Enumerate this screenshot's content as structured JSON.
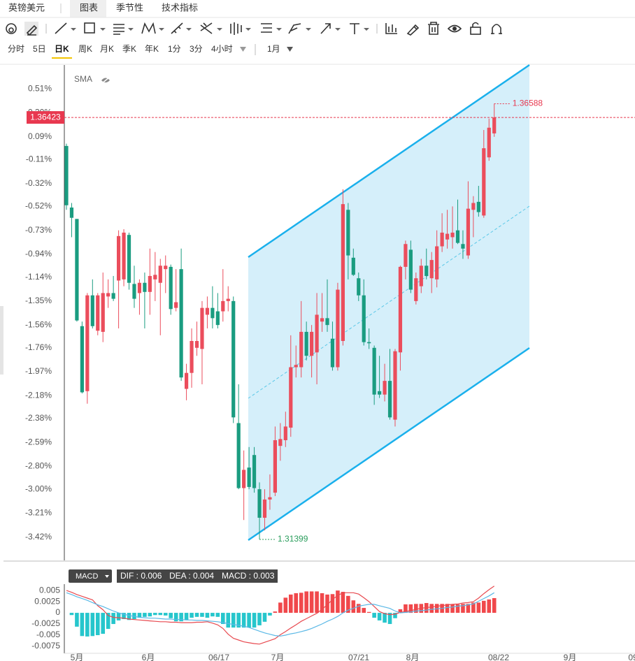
{
  "header": {
    "tabs": [
      "英镑美元",
      "图表",
      "季节性",
      "技术指标"
    ]
  },
  "periods": [
    "分时",
    "5日",
    "日K",
    "周K",
    "月K",
    "季K",
    "年K",
    "1分",
    "3分",
    "4小时"
  ],
  "range": "1月",
  "chart_data": [
    {
      "type": "candlestick",
      "indicator": "SMA",
      "colors": {
        "up": "#eb4d5c",
        "down": "#1a9c80"
      },
      "open": [
        0.01,
        -0.53,
        -0.63,
        -1.57,
        -2.14,
        -1.3,
        -1.61,
        -1.62,
        -1.31,
        -1.28,
        -1.17,
        -1.16,
        -0.77,
        -1.2,
        -1.28,
        -1.19,
        -1.27,
        -1.16,
        -1.19,
        -1.07,
        -1.05,
        -1.41,
        -1.07,
        -2.12,
        -1.98,
        -1.76,
        -1.77,
        -1.47,
        -1.41,
        -1.44,
        -1.44,
        -1.35,
        -1.35,
        -2.42,
        -2.99,
        -2.81,
        -2.7,
        -3.0,
        -3.25,
        -3.09,
        -3.03,
        -2.62,
        -2.57,
        -2.46,
        -1.93,
        -1.93,
        -1.62,
        -1.83,
        -1.8,
        -1.53,
        -1.5,
        -1.68,
        -1.93,
        -1.7,
        -0.55,
        -0.97,
        -1.15,
        -1.3,
        -1.71,
        -1.76,
        -2.14,
        -2.17,
        -2.05,
        -2.39,
        -1.8,
        -1.05,
        -0.9,
        -1.35,
        -1.22,
        -1.04,
        -1.15,
        -1.16,
        -0.87,
        -0.81,
        -0.79,
        -0.73,
        -0.85,
        -0.95,
        -0.55,
        -0.48,
        -0.6,
        -0.09,
        0.12
      ],
      "high": [
        0.03,
        -0.49,
        -0.63,
        -1.53,
        -1.28,
        -1.16,
        -1.28,
        -1.1,
        -1.16,
        -1.13,
        -0.73,
        -0.72,
        -0.75,
        -1.04,
        -1.16,
        -1.1,
        -0.89,
        -0.92,
        -0.98,
        -0.95,
        -1.03,
        -1.07,
        -0.89,
        -1.9,
        -1.59,
        -1.53,
        -1.35,
        -1.31,
        -1.22,
        -1.28,
        -1.07,
        -1.22,
        -1.31,
        -2.08,
        -2.66,
        -2.63,
        -2.63,
        -2.94,
        -3.0,
        -2.87,
        -2.45,
        -2.42,
        -2.32,
        -1.65,
        -1.74,
        -1.35,
        -1.53,
        -1.56,
        -1.28,
        -1.28,
        -1.16,
        -1.53,
        -1.19,
        -0.37,
        -0.49,
        -0.89,
        -1.1,
        -1.16,
        -1.59,
        -1.74,
        -1.83,
        -1.9,
        -1.77,
        -1.77,
        -1.04,
        -0.82,
        -0.82,
        -1.1,
        -0.98,
        -0.89,
        -0.92,
        -0.73,
        -0.58,
        -0.55,
        -0.52,
        -0.46,
        -0.73,
        -0.3,
        -0.43,
        -0.34,
        0.15,
        0.25,
        0.38
      ],
      "low": [
        -0.55,
        -0.79,
        -1.53,
        -2.16,
        -2.25,
        -1.59,
        -1.65,
        -1.71,
        -1.41,
        -1.35,
        -1.59,
        -1.22,
        -1.25,
        -1.41,
        -1.47,
        -1.59,
        -1.47,
        -1.35,
        -1.65,
        -1.28,
        -1.47,
        -1.44,
        -2.05,
        -2.22,
        -2.11,
        -1.83,
        -2.08,
        -1.59,
        -1.59,
        -1.59,
        -1.53,
        -1.44,
        -2.42,
        -3.0,
        -3.27,
        -3.0,
        -3.03,
        -3.44,
        -3.36,
        -3.18,
        -3.06,
        -2.75,
        -2.63,
        -2.54,
        -2.02,
        -2.02,
        -1.87,
        -2.02,
        -2.08,
        -1.62,
        -1.62,
        -1.96,
        -1.96,
        -1.74,
        -1.16,
        -1.13,
        -1.35,
        -1.74,
        -1.77,
        -2.26,
        -2.2,
        -2.23,
        -2.39,
        -2.45,
        -1.96,
        -1.16,
        -1.28,
        -1.38,
        -1.28,
        -1.16,
        -1.28,
        -1.23,
        -0.92,
        -0.89,
        -0.89,
        -0.85,
        -0.98,
        -0.98,
        -0.79,
        -0.61,
        -0.62,
        -0.12,
        0.09
      ],
      "close": [
        -0.51,
        -0.62,
        -1.52,
        -2.15,
        -1.3,
        -1.57,
        -1.3,
        -1.28,
        -1.28,
        -1.33,
        -0.78,
        -0.75,
        -1.19,
        -1.33,
        -1.19,
        -1.27,
        -1.13,
        -1.12,
        -1.04,
        -1.04,
        -1.42,
        -1.36,
        -2.02,
        -1.98,
        -1.7,
        -1.7,
        -1.41,
        -1.41,
        -1.5,
        -1.56,
        -1.35,
        -1.33,
        -2.37,
        -2.99,
        -2.83,
        -2.98,
        -2.99,
        -3.25,
        -3.09,
        -3.07,
        -2.57,
        -2.56,
        -2.45,
        -1.93,
        -1.91,
        -1.62,
        -1.83,
        -1.62,
        -1.47,
        -1.5,
        -1.56,
        -1.93,
        -1.25,
        -0.5,
        -0.95,
        -1.12,
        -1.3,
        -1.71,
        -1.72,
        -2.17,
        -2.17,
        -2.05,
        -2.37,
        -1.79,
        -1.05,
        -0.85,
        -1.25,
        -1.15,
        -1.04,
        -1.13,
        -0.99,
        -0.87,
        -0.75,
        -0.76,
        -0.75,
        -0.84,
        -0.89,
        -0.54,
        -0.49,
        -0.57,
        -0.01,
        0.17,
        0.26
      ],
      "ylim": [
        -3.63,
        0.72
      ],
      "yticks": [
        {
          "value": 0.51,
          "label": "0.51%"
        },
        {
          "value": 0.3,
          "label": "0.30%"
        },
        {
          "value": 0.09,
          "label": "0.09%"
        },
        {
          "value": -0.11,
          "label": "-0.11%"
        },
        {
          "value": -0.32,
          "label": "-0.32%"
        },
        {
          "value": -0.52,
          "label": "-0.52%"
        },
        {
          "value": -0.73,
          "label": "-0.73%"
        },
        {
          "value": -0.94,
          "label": "-0.94%"
        },
        {
          "value": -1.14,
          "label": "-1.14%"
        },
        {
          "value": -1.35,
          "label": "-1.35%"
        },
        {
          "value": -1.56,
          "label": "-1.56%"
        },
        {
          "value": -1.76,
          "label": "-1.76%"
        },
        {
          "value": -1.97,
          "label": "-1.97%"
        },
        {
          "value": -2.18,
          "label": "-2.18%"
        },
        {
          "value": -2.38,
          "label": "-2.38%"
        },
        {
          "value": -2.59,
          "label": "-2.59%"
        },
        {
          "value": -2.8,
          "label": "-2.80%"
        },
        {
          "value": -3.0,
          "label": "-3.00%"
        },
        {
          "value": -3.21,
          "label": "-3.21%"
        },
        {
          "value": -3.42,
          "label": "-3.42%"
        }
      ],
      "last_price": "1.36423",
      "high_label": "1.36588",
      "low_label": "1.31399"
    },
    {
      "type": "macd",
      "legend_title": "MACD",
      "legend": [
        "DIF : 0.006",
        "DEA : 0.004",
        "MACD : 0.003"
      ],
      "series": [
        {
          "color": "#e84a50",
          "values": [
            0.005,
            0.0046,
            0.0041,
            0.0037,
            0.0033,
            0.0029,
            0.0016,
            0.0007,
            -0.0006,
            -0.001,
            -0.0011,
            -0.0012,
            -0.0014,
            -0.0015,
            -0.0016,
            -0.0017,
            -0.0018,
            -0.0019,
            -0.002,
            -0.002,
            -0.0021,
            -0.0021,
            -0.0022,
            -0.0022,
            -0.0022,
            -0.0021,
            -0.0021,
            -0.002,
            -0.0023,
            -0.0027,
            -0.0035,
            -0.0048,
            -0.0057,
            -0.0061,
            -0.0065,
            -0.0067,
            -0.0069,
            -0.007,
            -0.0066,
            -0.0062,
            -0.0058,
            -0.0049,
            -0.0042,
            -0.0034,
            -0.0027,
            -0.0019,
            -0.0013,
            -0.0007,
            -0.0001,
            0.0008,
            0.0018,
            0.003,
            0.0039,
            0.0045,
            0.0045,
            0.0045,
            0.0042,
            0.0034,
            0.0025,
            0.0014,
            0.0003,
            -0.0002,
            -0.0004,
            -0.0003,
            0.0001,
            0.0003,
            0.0005,
            0.0008,
            0.001,
            0.0012,
            0.0013,
            0.0015,
            0.0016,
            0.0018,
            0.0019,
            0.002,
            0.0022,
            0.0023,
            0.0025,
            0.0033,
            0.0043,
            0.0052,
            0.006
          ]
        },
        {
          "color": "#5ab8e6",
          "values": [
            0.0045,
            0.0041,
            0.0036,
            0.0032,
            0.0028,
            0.0023,
            0.0018,
            0.0014,
            0.0009,
            0.0004,
            0.0,
            -0.0003,
            -0.0006,
            -0.0008,
            -0.001,
            -0.0011,
            -0.0012,
            -0.0012,
            -0.0013,
            -0.0014,
            -0.0014,
            -0.0015,
            -0.0015,
            -0.0016,
            -0.0016,
            -0.0017,
            -0.0017,
            -0.0018,
            -0.0019,
            -0.002,
            -0.0022,
            -0.0024,
            -0.0026,
            -0.0028,
            -0.003,
            -0.0033,
            -0.0037,
            -0.0041,
            -0.0045,
            -0.0048,
            -0.0051,
            -0.0052,
            -0.005,
            -0.0047,
            -0.0045,
            -0.0042,
            -0.0039,
            -0.0035,
            -0.003,
            -0.0025,
            -0.0019,
            -0.0014,
            -0.0008,
            0.0,
            0.0006,
            0.001,
            0.0015,
            0.0017,
            0.0019,
            0.0019,
            0.0016,
            0.0013,
            0.001,
            0.0004,
            0.0,
            0.0001,
            0.0002,
            0.0004,
            0.0005,
            0.0006,
            0.0008,
            0.0009,
            0.001,
            0.0012,
            0.0013,
            0.0015,
            0.0016,
            0.0018,
            0.002,
            0.0026,
            0.0032,
            0.0038,
            0.0045
          ]
        }
      ],
      "histogram": [
        0,
        -0.0005,
        -0.0031,
        -0.0052,
        -0.0053,
        -0.0052,
        -0.005,
        -0.0047,
        -0.0036,
        -0.0025,
        -0.0017,
        -0.0014,
        -0.0016,
        -0.0014,
        -0.0011,
        -0.0009,
        -0.0008,
        -0.0005,
        -0.0005,
        -0.0006,
        -0.0012,
        -0.0019,
        -0.0019,
        -0.0016,
        -0.0011,
        -0.0009,
        -0.0009,
        -0.0011,
        -0.0008,
        -0.0009,
        -0.0025,
        -0.0033,
        -0.0033,
        -0.0033,
        -0.0033,
        -0.0033,
        -0.0033,
        -0.0028,
        -0.002,
        -0.0006,
        0.0003,
        0.0023,
        0.0034,
        0.0041,
        0.0044,
        0.0045,
        0.0048,
        0.0048,
        0.0048,
        0.0044,
        0.0041,
        0.0042,
        0.005,
        0.0047,
        0.0038,
        0.0028,
        0.002,
        0.0011,
        0.0002,
        -0.0011,
        -0.0017,
        -0.0022,
        -0.0025,
        -0.0012,
        0.0008,
        0.0019,
        0.0019,
        0.002,
        0.002,
        0.0022,
        0.002,
        0.002,
        0.002,
        0.002,
        0.0019,
        0.0019,
        0.002,
        0.002,
        0.0023,
        0.0023,
        0.0027,
        0.003,
        0.0033
      ],
      "histogram_colors": {
        "up": "#f0484b",
        "down": "#26c6cc"
      },
      "ylim": [
        -0.0086,
        0.0069
      ],
      "yticks": [
        0.005,
        0.0025,
        0,
        -0.0025,
        -0.005,
        -0.0075
      ],
      "x_labels": [
        "5月",
        "6月",
        "06/17",
        "7月",
        "07/21",
        "8月",
        "08/22",
        "9月",
        "09"
      ]
    }
  ]
}
